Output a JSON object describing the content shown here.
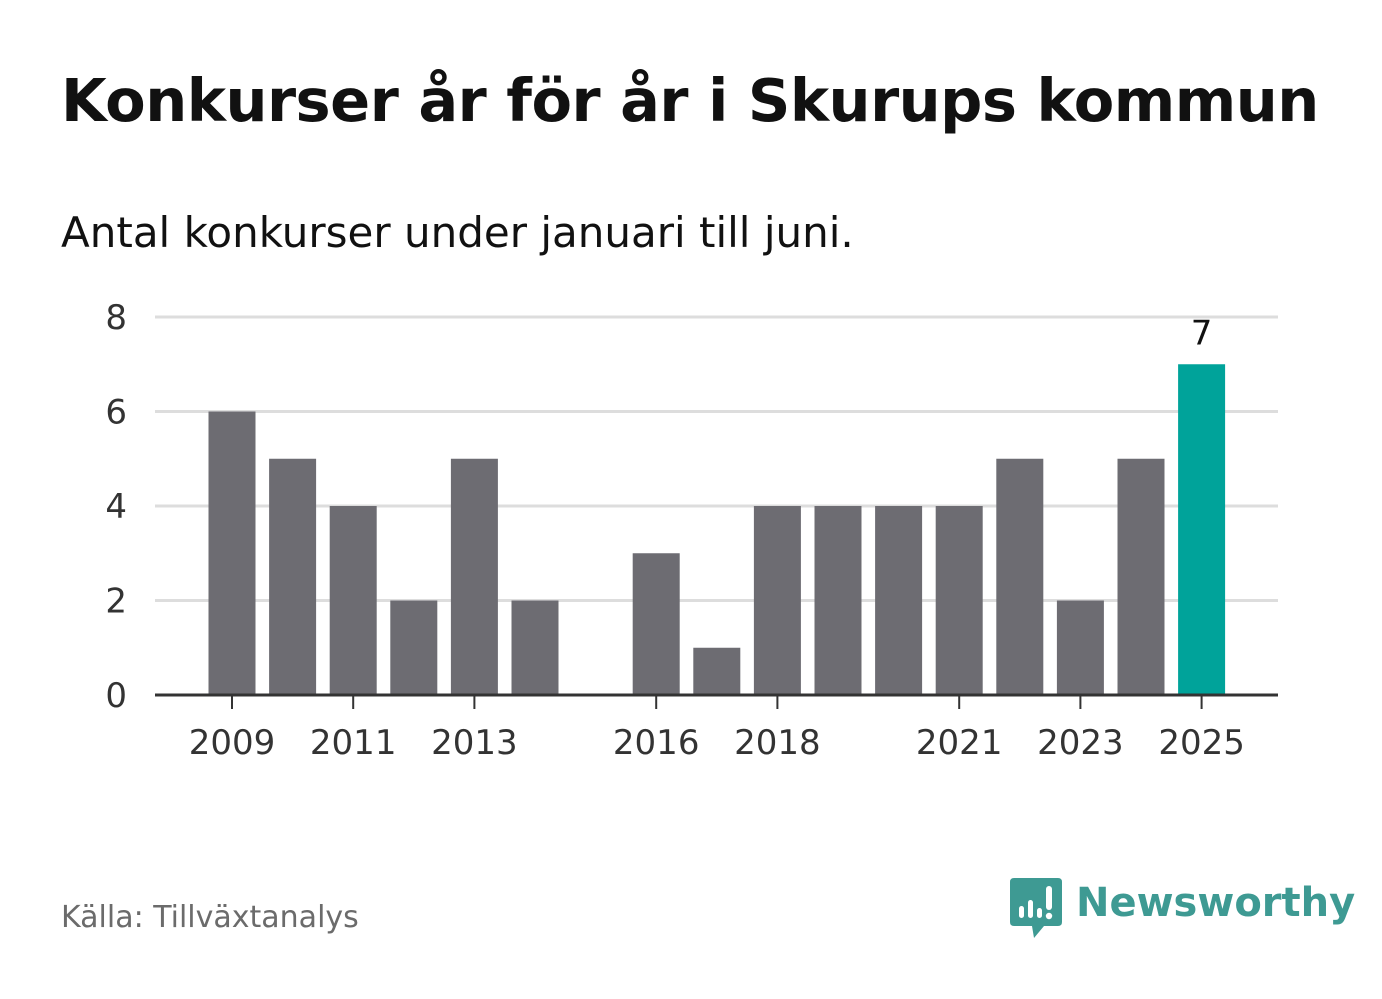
{
  "title": "Konkurser år för år i Skurups kommun",
  "subtitle": "Antal konkurser under januari till juni.",
  "source": "Källa: Tillväxtanalys",
  "brand": {
    "name": "Newsworthy",
    "icon": "bar-chart-speech-bubble-icon"
  },
  "colors": {
    "bar": "#6d6c72",
    "highlight": "#00a39a",
    "grid": "#dddddd",
    "axis": "#333333",
    "brand": "#3e9a93"
  },
  "chart_data": {
    "type": "bar",
    "title": "Konkurser år för år i Skurups kommun",
    "subtitle": "Antal konkurser under januari till juni.",
    "categories": [
      "2009",
      "2010",
      "2011",
      "2012",
      "2013",
      "2014",
      "2015",
      "2016",
      "2017",
      "2018",
      "2019",
      "2020",
      "2021",
      "2022",
      "2023",
      "2024",
      "2025"
    ],
    "values": [
      6,
      5,
      4,
      2,
      5,
      2,
      0,
      3,
      1,
      4,
      4,
      4,
      4,
      5,
      2,
      5,
      7
    ],
    "x_tick_labels": [
      "2009",
      "2011",
      "2013",
      "2016",
      "2018",
      "2021",
      "2023",
      "2025"
    ],
    "y_ticks": [
      0,
      2,
      4,
      6,
      8
    ],
    "ylim": [
      0,
      8
    ],
    "highlight": {
      "category": "2025",
      "label": "7"
    },
    "grid": true,
    "legend": "none"
  }
}
